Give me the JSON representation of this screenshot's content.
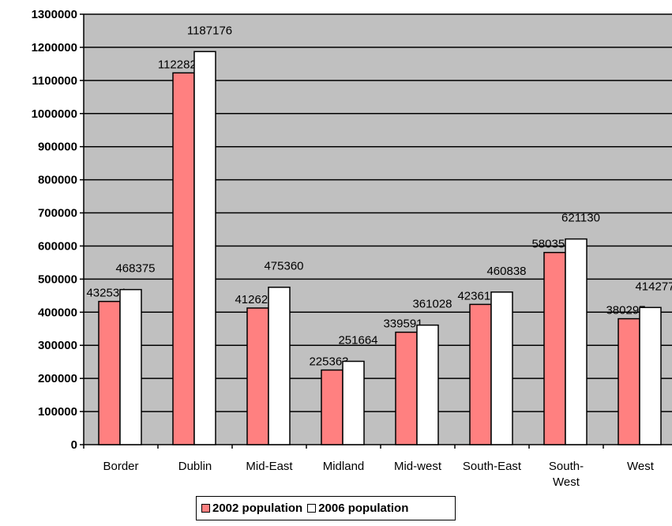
{
  "chart_data": {
    "type": "bar",
    "title": "",
    "xlabel": "",
    "ylabel": "",
    "categories": [
      [
        "Border"
      ],
      [
        "Dublin"
      ],
      [
        "Mid-East"
      ],
      [
        "Midland"
      ],
      [
        "Mid-west"
      ],
      [
        "South-East"
      ],
      [
        "South-",
        "West"
      ],
      [
        "West"
      ]
    ],
    "series": [
      {
        "name": "2002 population",
        "color": "#ff8080",
        "values": [
          432534,
          1122821,
          412625,
          225363,
          339591,
          423616,
          580356,
          380297
        ]
      },
      {
        "name": "2006 population",
        "color": "#ffffff",
        "values": [
          468375,
          1187176,
          475360,
          251664,
          361028,
          460838,
          621130,
          414277
        ]
      }
    ],
    "ylim": [
      0,
      1300000
    ],
    "yticks": [
      "0",
      "100000",
      "200000",
      "300000",
      "400000",
      "500000",
      "600000",
      "700000",
      "800000",
      "900000",
      "1000000",
      "1100000",
      "1200000",
      "1300000"
    ],
    "grid": true,
    "plot_background": "#c0c0c0",
    "legend_position": "bottom"
  }
}
